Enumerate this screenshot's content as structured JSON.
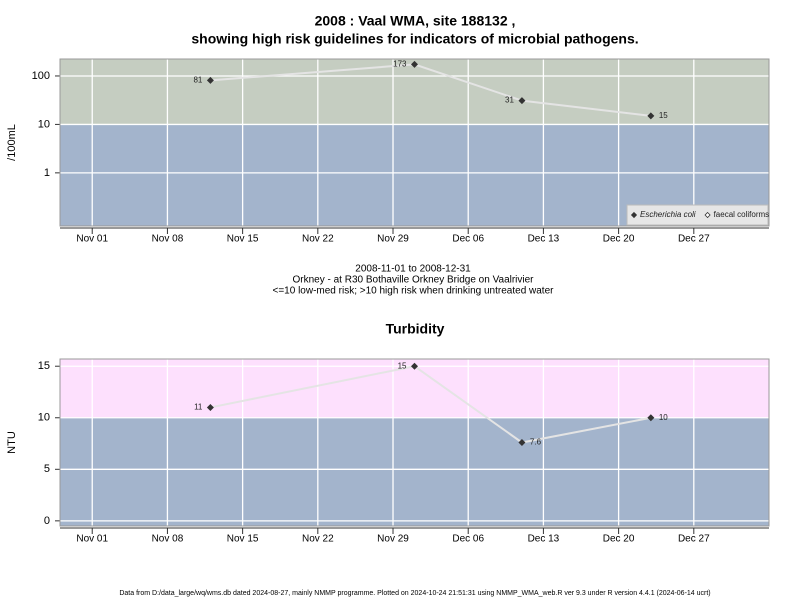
{
  "chart_data": [
    {
      "type": "line",
      "title": [
        "2008 : Vaal WMA, site 188132 ,",
        "showing high risk guidelines for indicators of microbial pathogens."
      ],
      "subtitle": [
        "2008-11-01 to 2008-12-31",
        "Orkney - at R30 Bothaville Orkney Bridge on Vaalrivier",
        "<=10 low-med risk; >10 high risk when drinking untreated water"
      ],
      "y_label": "/100mL",
      "log_y": true,
      "grid": true,
      "threshold": 10,
      "high_color": "#c5cdc1",
      "low_color": "#a3b4cc",
      "legend": "bottom-right",
      "x": [
        "2008-11-12",
        "2008-12-01",
        "2008-12-11",
        "2008-12-23"
      ],
      "series": [
        {
          "name": "Escherichia coli",
          "color": "#333333",
          "values": [
            81,
            173,
            31,
            15
          ]
        },
        {
          "name": "faecal coliforms",
          "color": "#333333",
          "values": [
            null,
            null,
            null,
            null
          ]
        }
      ],
      "xlim": [
        "2008-10-29",
        "2009-01-03"
      ],
      "xticks": [
        {
          "value": "2008-11-01",
          "label": "Nov 01"
        },
        {
          "value": "2008-11-08",
          "label": "Nov 08"
        },
        {
          "value": "2008-11-15",
          "label": "Nov 15"
        },
        {
          "value": "2008-11-22",
          "label": "Nov 22"
        },
        {
          "value": "2008-11-29",
          "label": "Nov 29"
        },
        {
          "value": "2008-12-06",
          "label": "Dec 06"
        },
        {
          "value": "2008-12-13",
          "label": "Dec 13"
        },
        {
          "value": "2008-12-20",
          "label": "Dec 20"
        },
        {
          "value": "2008-12-27",
          "label": "Dec 27"
        }
      ],
      "ylim": [
        0.08,
        224
      ],
      "yticks": [
        1,
        10,
        100
      ]
    },
    {
      "type": "line",
      "title": [
        "Turbidity"
      ],
      "y_label": "NTU",
      "log_y": false,
      "grid": true,
      "threshold": 10,
      "high_color": "#fde0fd",
      "low_color": "#a3b4cc",
      "x": [
        "2008-11-12",
        "2008-12-01",
        "2008-12-11",
        "2008-12-23"
      ],
      "series": [
        {
          "name": "Turbidity",
          "color": "#333333",
          "values": [
            11,
            15,
            7.6,
            10
          ]
        }
      ],
      "xlim": [
        "2008-10-29",
        "2009-01-03"
      ],
      "xticks": [
        {
          "value": "2008-11-01",
          "label": "Nov 01"
        },
        {
          "value": "2008-11-08",
          "label": "Nov 08"
        },
        {
          "value": "2008-11-15",
          "label": "Nov 15"
        },
        {
          "value": "2008-11-22",
          "label": "Nov 22"
        },
        {
          "value": "2008-11-29",
          "label": "Nov 29"
        },
        {
          "value": "2008-12-06",
          "label": "Dec 06"
        },
        {
          "value": "2008-12-13",
          "label": "Dec 13"
        },
        {
          "value": "2008-12-20",
          "label": "Dec 20"
        },
        {
          "value": "2008-12-27",
          "label": "Dec 27"
        }
      ],
      "ylim": [
        -0.5,
        15.7
      ],
      "yticks": [
        0,
        5,
        10,
        15
      ]
    }
  ],
  "footer": "Data from D:/data_large/wq/wms.db dated 2024-08-27, mainly NMMP programme. Plotted on 2024-10-24 21:51:31 using NMMP_WMA_web.R ver 9.3 under R version 4.4.1 (2024-06-14 ucrt)"
}
